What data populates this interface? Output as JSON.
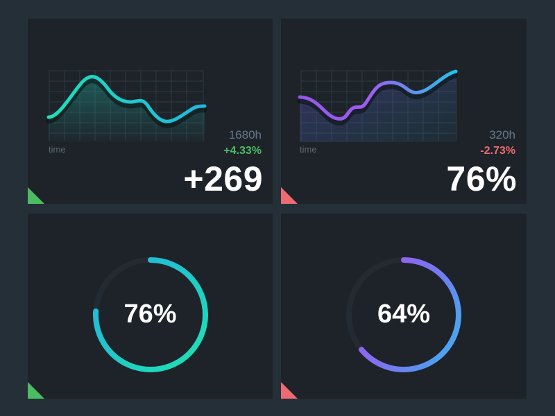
{
  "colors": {
    "background": "#252f38",
    "card": "#1e2329",
    "positive": "#4cbc63",
    "negative": "#ec6a72",
    "teal_start": "#1de0b8",
    "teal_end": "#22b6e0",
    "purple": "#9b5cf0",
    "blue": "#3ab5f0",
    "track": "#232a32",
    "grid": "#2a3942"
  },
  "cards": {
    "top_left": {
      "axis_label": "time",
      "hours": "1680h",
      "change": "+4.33%",
      "change_trend": "positive",
      "value": "+269",
      "corner_color": "positive",
      "icon": "triangle-flag-icon"
    },
    "top_right": {
      "axis_label": "time",
      "hours": "320h",
      "change": "-2.73%",
      "change_trend": "negative",
      "value": "76%",
      "corner_color": "negative",
      "icon": "triangle-flag-icon"
    },
    "bottom_left": {
      "percent_label": "76%",
      "percent": 76,
      "corner_color": "positive",
      "icon": "triangle-flag-icon"
    },
    "bottom_right": {
      "percent_label": "64%",
      "percent": 64,
      "corner_color": "negative",
      "icon": "triangle-flag-icon"
    }
  }
}
